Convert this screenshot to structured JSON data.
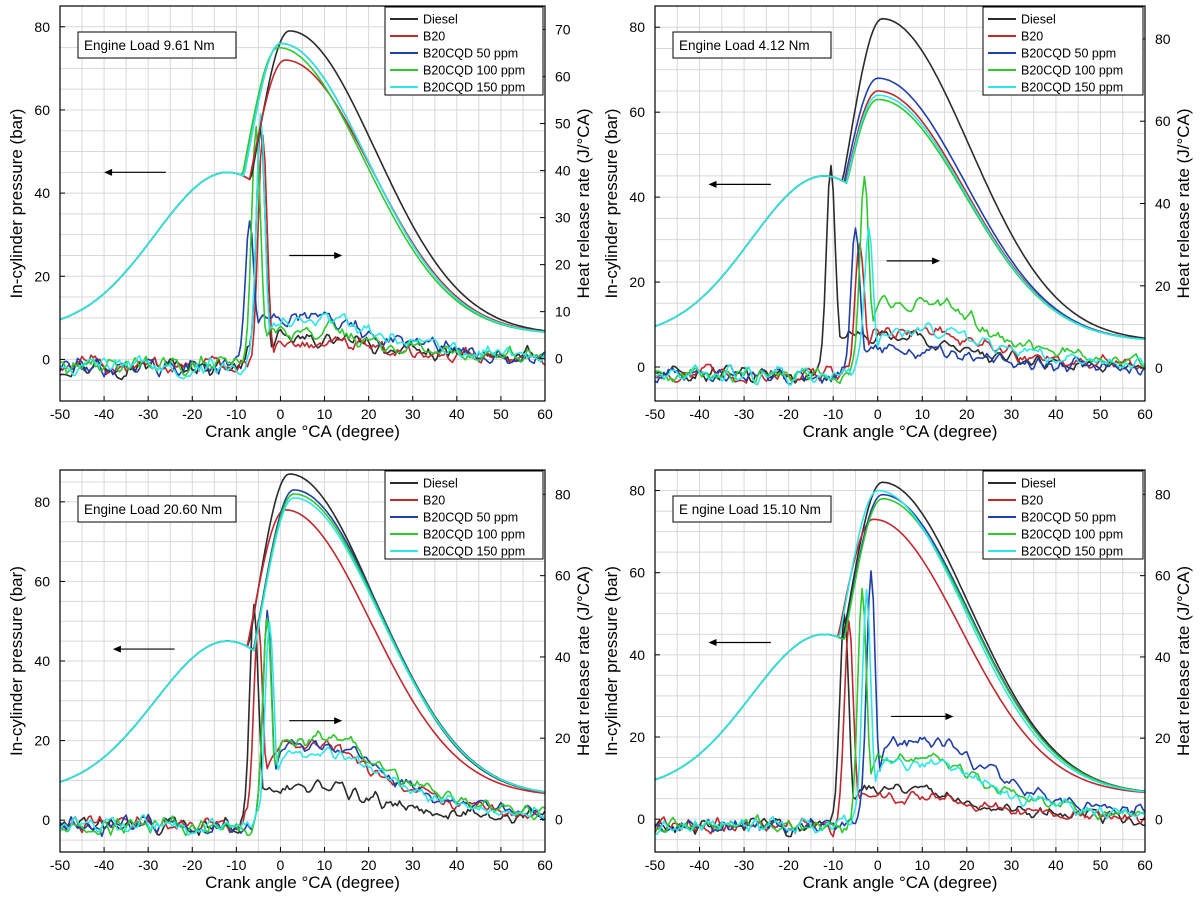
{
  "figure": {
    "colors": {
      "Diesel": "#2b2b2b",
      "B20": "#c0282d",
      "B20CQD 50 ppm": "#1f3fa8",
      "B20CQD 100 ppm": "#2ec92e",
      "B20CQD 150 ppm": "#2ee6e6"
    }
  },
  "chart_data": [
    {
      "type": "line",
      "panel": "top-left",
      "load_label": "Engine Load 9.61 Nm",
      "xlabel": "Crank angle °CA (degree)",
      "ylabel_left": "In-cylinder pressure (bar)",
      "ylabel_right": "Heat release rate (J/°CA)",
      "xlim": [
        -50,
        60
      ],
      "ylim_left": [
        -10,
        85
      ],
      "ylim_right": [
        -9,
        75
      ],
      "xticks": [
        "-50",
        "-40",
        "-30",
        "-20",
        "-10",
        "0",
        "10",
        "20",
        "30",
        "40",
        "50",
        "60"
      ],
      "yticks_left": [
        "0",
        "20",
        "40",
        "60",
        "80"
      ],
      "yticks_right": [
        "0",
        "10",
        "20",
        "30",
        "40",
        "50",
        "60",
        "70"
      ],
      "legend": [
        "Diesel",
        "B20",
        "B20CQD 50 ppm",
        "B20CQD 100 ppm",
        "B20CQD 150 ppm"
      ],
      "legend_position": "top-right",
      "series_pressure": [
        {
          "name": "Diesel",
          "peak": 79,
          "peak_angle": 2
        },
        {
          "name": "B20",
          "peak": 72,
          "peak_angle": 1
        },
        {
          "name": "B20CQD 50 ppm",
          "peak": 76,
          "peak_angle": 0
        },
        {
          "name": "B20CQD 100 ppm",
          "peak": 75,
          "peak_angle": -0.5
        },
        {
          "name": "B20CQD 150 ppm",
          "peak": 76,
          "peak_angle": 0
        }
      ],
      "series_hrr": [
        {
          "name": "Diesel",
          "peak": 50,
          "peak_angle": -4.5,
          "late": 4
        },
        {
          "name": "B20",
          "peak": 47,
          "peak_angle": -4,
          "late": 3
        },
        {
          "name": "B20CQD 50 ppm",
          "peak": 30,
          "peak_angle": -7,
          "late": 9
        },
        {
          "name": "B20CQD 100 ppm",
          "peak": 50,
          "peak_angle": -5.5,
          "late": 6
        },
        {
          "name": "B20CQD 150 ppm",
          "peak": 53,
          "peak_angle": -4.5,
          "late": 8
        }
      ]
    },
    {
      "type": "line",
      "panel": "top-right",
      "load_label": "Engine Load 4.12 Nm",
      "xlabel": "Crank angle °CA (degree)",
      "ylabel_left": "In-cylinder pressure (bar)",
      "ylabel_right": "Heat release rate (J/°CA)",
      "xlim": [
        -50,
        60
      ],
      "ylim_left": [
        -8,
        85
      ],
      "ylim_right": [
        -8,
        88
      ],
      "xticks": [
        "-50",
        "-40",
        "-30",
        "-20",
        "-10",
        "0",
        "10",
        "20",
        "30",
        "40",
        "50",
        "60"
      ],
      "yticks_left": [
        "0",
        "20",
        "40",
        "60",
        "80"
      ],
      "yticks_right": [
        "0",
        "20",
        "40",
        "60",
        "80"
      ],
      "legend": [
        "Diesel",
        "B20",
        "B20CQD 50 ppm",
        "B20CQD 100 ppm",
        "B20CQD 150 ppm"
      ],
      "legend_position": "top-right",
      "series_pressure": [
        {
          "name": "Diesel",
          "peak": 82,
          "peak_angle": 1
        },
        {
          "name": "B20",
          "peak": 65,
          "peak_angle": 0
        },
        {
          "name": "B20CQD 50 ppm",
          "peak": 68,
          "peak_angle": 0
        },
        {
          "name": "B20CQD 100 ppm",
          "peak": 63,
          "peak_angle": 0
        },
        {
          "name": "B20CQD 150 ppm",
          "peak": 64,
          "peak_angle": 0
        }
      ],
      "series_hrr": [
        {
          "name": "Diesel",
          "peak": 48,
          "peak_angle": -10.5,
          "late": 8
        },
        {
          "name": "B20",
          "peak": 31,
          "peak_angle": -4,
          "late": 9
        },
        {
          "name": "B20CQD 50 ppm",
          "peak": 34,
          "peak_angle": -5,
          "late": 4
        },
        {
          "name": "B20CQD 100 ppm",
          "peak": 48,
          "peak_angle": -3,
          "late": 16
        },
        {
          "name": "B20CQD 150 ppm",
          "peak": 33,
          "peak_angle": -2,
          "late": 9
        }
      ]
    },
    {
      "type": "line",
      "panel": "bottom-left",
      "load_label": "Engine Load 20.60 Nm",
      "xlabel": "Crank angle °CA (degree)",
      "ylabel_left": "In-cylinder pressure (bar)",
      "ylabel_right": "Heat release rate (J/°CA)",
      "xlim": [
        -50,
        60
      ],
      "ylim_left": [
        -8,
        88
      ],
      "ylim_right": [
        -8,
        86
      ],
      "xticks": [
        "-50",
        "-40",
        "-30",
        "-20",
        "-10",
        "0",
        "10",
        "20",
        "30",
        "40",
        "50",
        "60"
      ],
      "yticks_left": [
        "0",
        "20",
        "40",
        "60",
        "80"
      ],
      "yticks_right": [
        "0",
        "20",
        "40",
        "60",
        "80"
      ],
      "legend": [
        "Diesel",
        "B20",
        "B20CQD 50 ppm",
        "B20CQD 100 ppm",
        "B20CQD 150 ppm"
      ],
      "legend_position": "top-right",
      "series_pressure": [
        {
          "name": "Diesel",
          "peak": 87,
          "peak_angle": 2
        },
        {
          "name": "B20",
          "peak": 78,
          "peak_angle": 1
        },
        {
          "name": "B20CQD 50 ppm",
          "peak": 83,
          "peak_angle": 3
        },
        {
          "name": "B20CQD 100 ppm",
          "peak": 82,
          "peak_angle": 3
        },
        {
          "name": "B20CQD 150 ppm",
          "peak": 81,
          "peak_angle": 3
        }
      ],
      "series_hrr": [
        {
          "name": "Diesel",
          "peak": 53,
          "peak_angle": -6,
          "late": 8
        },
        {
          "name": "B20",
          "peak": 49,
          "peak_angle": -5,
          "late": 18
        },
        {
          "name": "B20CQD 50 ppm",
          "peak": 51,
          "peak_angle": -3,
          "late": 18
        },
        {
          "name": "B20CQD 100 ppm",
          "peak": 49,
          "peak_angle": -3,
          "late": 20
        },
        {
          "name": "B20CQD 150 ppm",
          "peak": 49,
          "peak_angle": -2.5,
          "late": 16
        }
      ]
    },
    {
      "type": "line",
      "panel": "bottom-right",
      "load_label": "E ngine Load 15.10 Nm",
      "xlabel": "Crank angle °CA (degree)",
      "ylabel_left": "In-cylinder pressure (bar)",
      "ylabel_right": "Heat release rate (J/°CA)",
      "xlim": [
        -50,
        60
      ],
      "ylim_left": [
        -8,
        85
      ],
      "ylim_right": [
        -8,
        86
      ],
      "xticks": [
        "-50",
        "-40",
        "-30",
        "-20",
        "-10",
        "0",
        "10",
        "20",
        "30",
        "40",
        "50",
        "60"
      ],
      "yticks_left": [
        "0",
        "20",
        "40",
        "60",
        "80"
      ],
      "yticks_right": [
        "0",
        "20",
        "40",
        "60",
        "80"
      ],
      "legend": [
        "Diesel",
        "B20",
        "B20CQD 50 ppm",
        "B20CQD 100 ppm",
        "B20CQD 150 ppm"
      ],
      "legend_position": "top-right",
      "series_pressure": [
        {
          "name": "Diesel",
          "peak": 82,
          "peak_angle": 1
        },
        {
          "name": "B20",
          "peak": 73,
          "peak_angle": -1
        },
        {
          "name": "B20CQD 50 ppm",
          "peak": 79,
          "peak_angle": 1
        },
        {
          "name": "B20CQD 100 ppm",
          "peak": 78,
          "peak_angle": 1
        },
        {
          "name": "B20CQD 150 ppm",
          "peak": 80,
          "peak_angle": 0
        }
      ],
      "series_hrr": [
        {
          "name": "Diesel",
          "peak": 51,
          "peak_angle": -7.5,
          "late": 8
        },
        {
          "name": "B20",
          "peak": 49,
          "peak_angle": -6.5,
          "late": 6
        },
        {
          "name": "B20CQD 50 ppm",
          "peak": 60,
          "peak_angle": -1.5,
          "late": 19
        },
        {
          "name": "B20CQD 100 ppm",
          "peak": 56,
          "peak_angle": -3.5,
          "late": 15
        },
        {
          "name": "B20CQD 150 ppm",
          "peak": 56,
          "peak_angle": -2.5,
          "late": 14
        }
      ]
    }
  ]
}
